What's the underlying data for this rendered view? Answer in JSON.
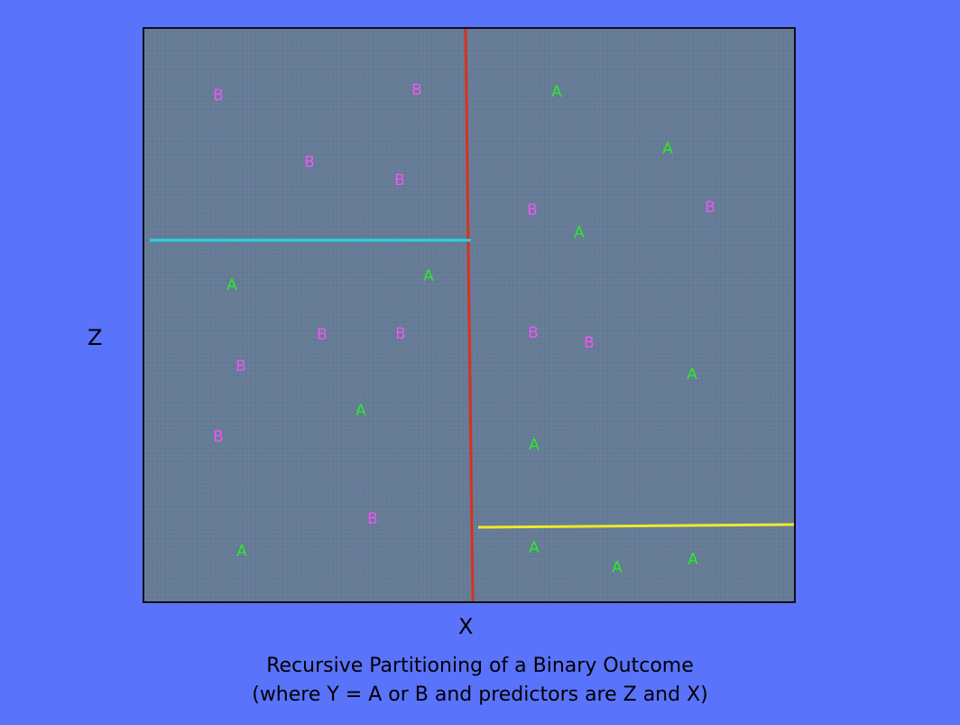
{
  "axes": {
    "x_label": "X",
    "z_label": "Z"
  },
  "caption": {
    "line1": "Recursive Partitioning of a Binary Outcome",
    "line2": "(where Y = A or B and predictors are Z and X)"
  },
  "colors": {
    "background": "#5a73fb",
    "plot_bg": "#647a95",
    "A": "#2bea2b",
    "B": "#f255f2",
    "split_x": "#d8311c",
    "split_left": "#27d4e6",
    "split_right": "#f0e82a"
  },
  "points": [
    {
      "label": "B"
    },
    {
      "label": "B"
    },
    {
      "label": "B"
    },
    {
      "label": "B"
    },
    {
      "label": "A"
    },
    {
      "label": "A"
    },
    {
      "label": "B"
    },
    {
      "label": "B"
    },
    {
      "label": "B"
    },
    {
      "label": "A"
    },
    {
      "label": "B"
    },
    {
      "label": "B"
    },
    {
      "label": "A"
    },
    {
      "label": "A"
    },
    {
      "label": "A"
    },
    {
      "label": "B"
    },
    {
      "label": "A"
    },
    {
      "label": "B"
    },
    {
      "label": "B"
    },
    {
      "label": "B"
    },
    {
      "label": "A"
    },
    {
      "label": "A"
    },
    {
      "label": "A"
    },
    {
      "label": "A"
    },
    {
      "label": "A"
    }
  ]
}
